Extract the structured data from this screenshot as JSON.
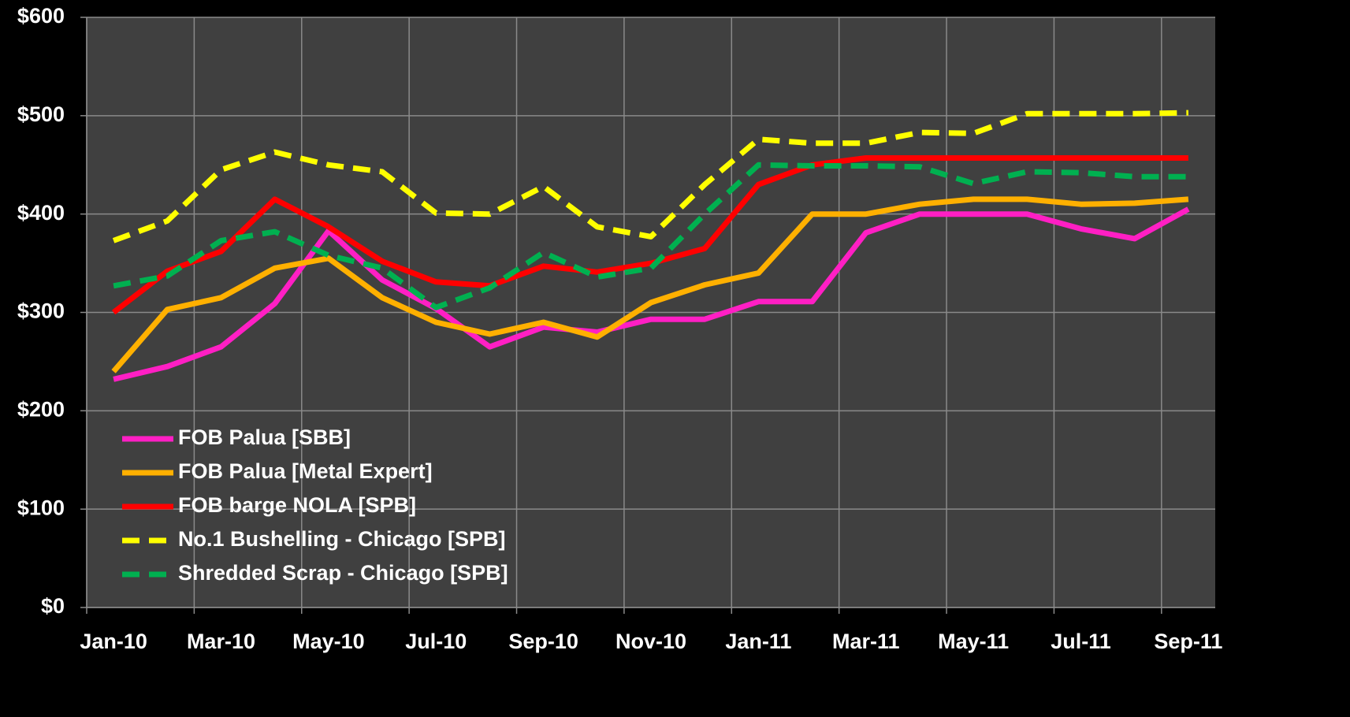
{
  "chart_data": {
    "type": "line",
    "categories": [
      "Jan-10",
      null,
      "Mar-10",
      null,
      "May-10",
      null,
      "Jul-10",
      null,
      "Sep-10",
      null,
      "Nov-10",
      null,
      "Jan-11",
      null,
      "Mar-11",
      null,
      "May-11",
      null,
      "Jul-11",
      null,
      "Sep-11"
    ],
    "ylim": [
      0,
      600
    ],
    "yticks": [
      {
        "value": 0,
        "label": "$0"
      },
      {
        "value": 100,
        "label": "$100"
      },
      {
        "value": 200,
        "label": "$200"
      },
      {
        "value": 300,
        "label": "$300"
      },
      {
        "value": 400,
        "label": "$400"
      },
      {
        "value": 500,
        "label": "$500"
      },
      {
        "value": 600,
        "label": "$600"
      }
    ],
    "grid": true,
    "legend": "lower-left",
    "series": [
      {
        "name": "FOB Palua [SBB]",
        "color": "#ff1fc4",
        "dashed": false,
        "values": [
          232,
          245,
          265,
          309,
          383,
          333,
          304,
          265,
          285,
          280,
          293,
          293,
          311,
          311,
          381,
          400,
          400,
          400,
          385,
          375,
          405
        ]
      },
      {
        "name": "FOB Palua [Metal Expert]",
        "color": "#ffb000",
        "dashed": false,
        "values": [
          240,
          303,
          315,
          345,
          355,
          315,
          290,
          278,
          290,
          275,
          310,
          328,
          340,
          400,
          400,
          410,
          415,
          415,
          410,
          411,
          415
        ]
      },
      {
        "name": "FOB barge NOLA [SPB]",
        "color": "#ff0000",
        "dashed": false,
        "values": [
          300,
          342,
          362,
          415,
          387,
          352,
          331,
          327,
          347,
          341,
          350,
          365,
          430,
          450,
          457,
          457,
          457,
          457,
          457,
          457,
          457
        ]
      },
      {
        "name": "No.1 Bushelling - Chicago [SPB]",
        "color": "#ffff00",
        "dashed": true,
        "values": [
          373,
          393,
          445,
          463,
          450,
          443,
          401,
          400,
          428,
          387,
          377,
          430,
          476,
          472,
          472,
          483,
          482,
          502,
          502,
          502,
          503
        ]
      },
      {
        "name": "Shredded Scrap - Chicago [SPB]",
        "color": "#00b050",
        "dashed": true,
        "values": [
          327,
          337,
          373,
          382,
          358,
          345,
          305,
          325,
          361,
          336,
          345,
          400,
          450,
          449,
          449,
          448,
          431,
          443,
          442,
          438,
          438
        ]
      }
    ]
  }
}
